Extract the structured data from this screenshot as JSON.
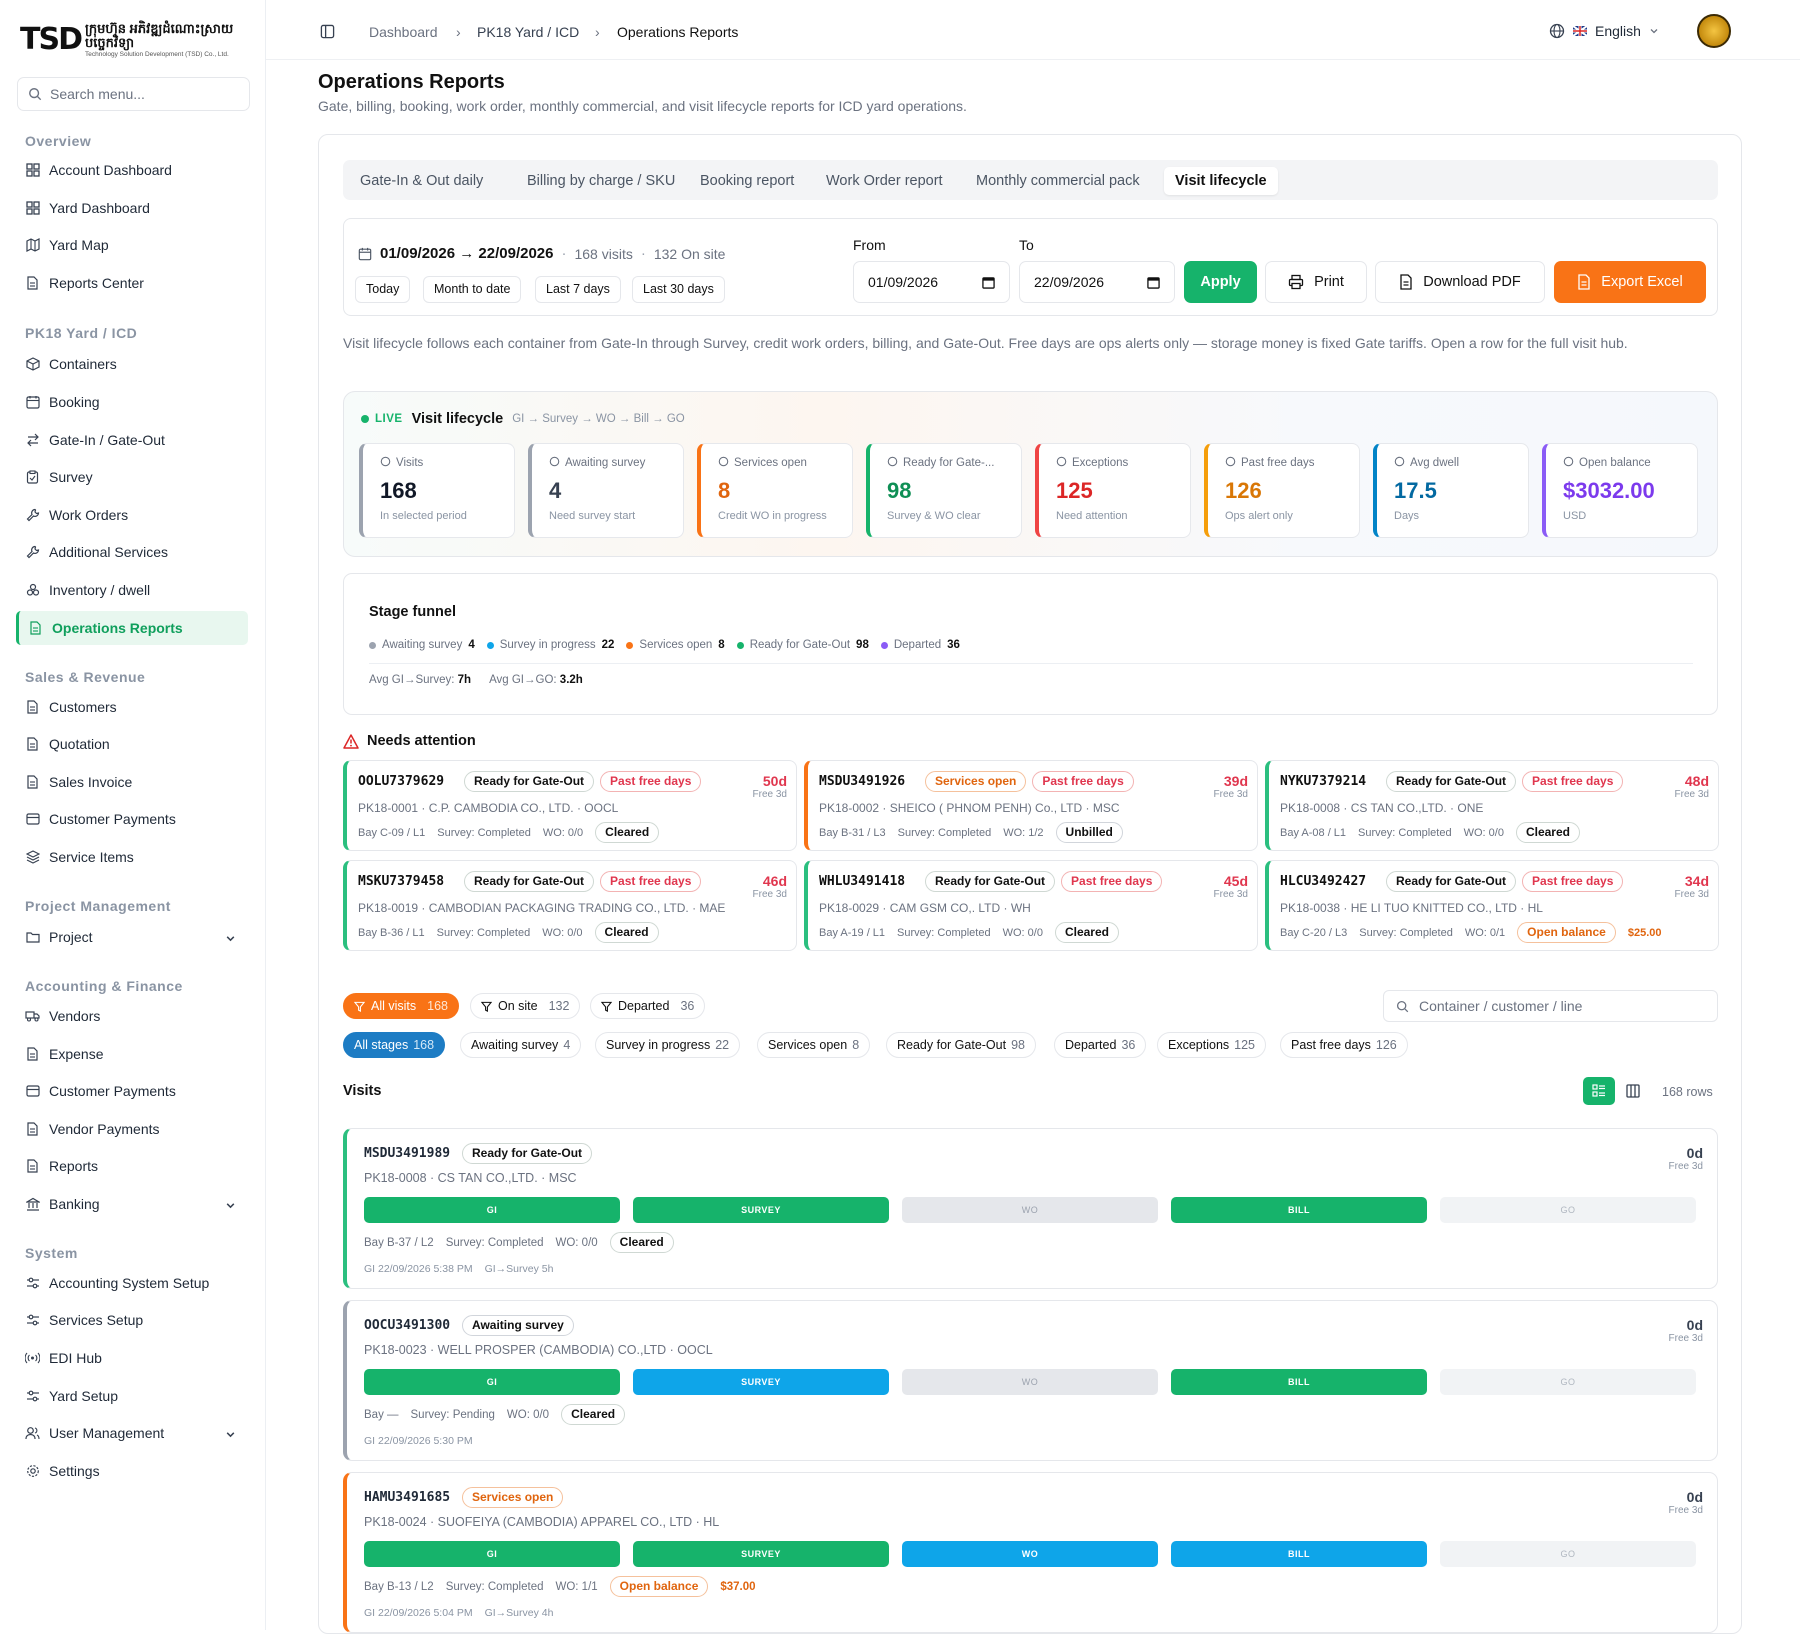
{
  "brand": {
    "mark": "TSD",
    "name_km": "ក្រុមហ៊ុន អភិវឌ្ឍដំណោះស្រាយបច្ចេកវិទ្យា",
    "name_en": "Technology Solution Development (TSD) Co., Ltd."
  },
  "search": {
    "placeholder": "Search menu..."
  },
  "sidebar": {
    "sections": [
      "Overview",
      "PK18 Yard / ICD",
      "Sales & Revenue",
      "Project Management",
      "Accounting & Finance",
      "System"
    ],
    "overview": [
      "Account Dashboard",
      "Yard Dashboard",
      "Yard Map",
      "Reports Center"
    ],
    "yard": [
      "Containers",
      "Booking",
      "Gate-In / Gate-Out",
      "Survey",
      "Work Orders",
      "Additional Services",
      "Inventory / dwell",
      "Operations Reports"
    ],
    "sales": [
      "Customers",
      "Quotation",
      "Sales Invoice",
      "Customer Payments",
      "Service Items"
    ],
    "project": [
      "Project"
    ],
    "accounting": [
      "Vendors",
      "Expense",
      "Customer Payments",
      "Vendor Payments",
      "Reports",
      "Banking"
    ],
    "system": [
      "Accounting System Setup",
      "Services Setup",
      "EDI Hub",
      "Yard Setup",
      "User Management",
      "Settings"
    ]
  },
  "breadcrumb": [
    "Dashboard",
    "PK18 Yard / ICD",
    "Operations Reports"
  ],
  "language": "English",
  "page": {
    "title": "Operations Reports",
    "subtitle": "Gate, billing, booking, work order, monthly commercial, and visit lifecycle reports for ICD yard operations."
  },
  "tabs": [
    "Gate-In & Out daily",
    "Billing by charge / SKU",
    "Booking report",
    "Work Order report",
    "Monthly commercial pack",
    "Visit lifecycle"
  ],
  "filter": {
    "range": "01/09/2026 → 22/09/2026",
    "visits": "168 visits",
    "onsite": "132 On site",
    "quick": [
      "Today",
      "Month to date",
      "Last 7 days",
      "Last 30 days"
    ],
    "from_label": "From",
    "to_label": "To",
    "from": "01/09/2026",
    "to": "22/09/2026",
    "apply": "Apply",
    "print": "Print",
    "pdf": "Download PDF",
    "excel": "Export Excel"
  },
  "description": "Visit lifecycle follows each container from Gate-In through Survey, credit work orders, billing, and Gate-Out. Free days are ops alerts only — storage money is fixed Gate tariffs. Open a row for the full visit hub.",
  "lifecycle": {
    "live": "LIVE",
    "title": "Visit lifecycle",
    "flow": "GI → Survey → WO → Bill → GO",
    "kpis": [
      {
        "label": "Visits",
        "value": "168",
        "sub": "In selected period",
        "color": "#9ca3af",
        "vcolor": "#111827"
      },
      {
        "label": "Awaiting survey",
        "value": "4",
        "sub": "Need survey start",
        "color": "#9ca3af",
        "vcolor": "#374151"
      },
      {
        "label": "Services open",
        "value": "8",
        "sub": "Credit WO in progress",
        "color": "#f97316",
        "vcolor": "#e0650f"
      },
      {
        "label": "Ready for Gate-...",
        "value": "98",
        "sub": "Survey & WO clear",
        "color": "#16b36b",
        "vcolor": "#0f8f55"
      },
      {
        "label": "Exceptions",
        "value": "125",
        "sub": "Need attention",
        "color": "#ef4444",
        "vcolor": "#dc2626"
      },
      {
        "label": "Past free days",
        "value": "126",
        "sub": "Ops alert only",
        "color": "#f59e0b",
        "vcolor": "#d97706"
      },
      {
        "label": "Avg dwell",
        "value": "17.5",
        "sub": "Days",
        "color": "#0284c7",
        "vcolor": "#0369a1"
      },
      {
        "label": "Open balance",
        "value": "$3032.00",
        "sub": "USD",
        "color": "#8b5cf6",
        "vcolor": "#7c3aed"
      }
    ]
  },
  "funnel": {
    "title": "Stage funnel",
    "items": [
      {
        "label": "Awaiting survey",
        "n": "4",
        "color": "#9ca3af"
      },
      {
        "label": "Survey in progress",
        "n": "22",
        "color": "#0ea5e9"
      },
      {
        "label": "Services open",
        "n": "8",
        "color": "#f97316"
      },
      {
        "label": "Ready for Gate-Out",
        "n": "98",
        "color": "#16b36b"
      },
      {
        "label": "Departed",
        "n": "36",
        "color": "#8b5cf6"
      }
    ],
    "avg1_label": "Avg GI→Survey:",
    "avg1": "7h",
    "avg2_label": "Avg GI→GO:",
    "avg2": "3.2h"
  },
  "attention": {
    "title": "Needs attention",
    "cards": [
      {
        "id": "OOLU7379629",
        "status": "Ready for Gate-Out",
        "scls": "green",
        "flag": "Past free days",
        "days": "50d",
        "free": "Free 3d",
        "line1": "PK18-0001 · C.P. CAMBODIA CO., LTD. · OOCL",
        "bay": "Bay C-09 / L1",
        "survey": "Survey: Completed",
        "wo": "WO: 0/0",
        "bill": "Cleared",
        "bcls": "green",
        "amt": ""
      },
      {
        "id": "MSDU3491926",
        "status": "Services open",
        "scls": "orange",
        "flag": "Past free days",
        "days": "39d",
        "free": "Free 3d",
        "line1": "PK18-0002 · SHEICO ( PHNOM PENH) Co., LTD · MSC",
        "bay": "Bay B-31 / L3",
        "survey": "Survey: Completed",
        "wo": "WO: 1/2",
        "bill": "Unbilled",
        "bcls": "",
        "amt": ""
      },
      {
        "id": "NYKU7379214",
        "status": "Ready for Gate-Out",
        "scls": "green",
        "flag": "Past free days",
        "days": "48d",
        "free": "Free 3d",
        "line1": "PK18-0008 · CS TAN CO.,LTD. · ONE",
        "bay": "Bay A-08 / L1",
        "survey": "Survey: Completed",
        "wo": "WO: 0/0",
        "bill": "Cleared",
        "bcls": "green",
        "amt": ""
      },
      {
        "id": "MSKU7379458",
        "status": "Ready for Gate-Out",
        "scls": "green",
        "flag": "Past free days",
        "days": "46d",
        "free": "Free 3d",
        "line1": "PK18-0019 · CAMBODIAN PACKAGING TRADING CO., LTD. · MAE",
        "bay": "Bay B-36 / L1",
        "survey": "Survey: Completed",
        "wo": "WO: 0/0",
        "bill": "Cleared",
        "bcls": "green",
        "amt": ""
      },
      {
        "id": "WHLU3491418",
        "status": "Ready for Gate-Out",
        "scls": "green",
        "flag": "Past free days",
        "days": "45d",
        "free": "Free 3d",
        "line1": "PK18-0029 · CAM GSM CO,. LTD · WH",
        "bay": "Bay A-19 / L1",
        "survey": "Survey: Completed",
        "wo": "WO: 0/0",
        "bill": "Cleared",
        "bcls": "green",
        "amt": ""
      },
      {
        "id": "HLCU3492427",
        "status": "Ready for Gate-Out",
        "scls": "green",
        "flag": "Past free days",
        "days": "34d",
        "free": "Free 3d",
        "line1": "PK18-0038 · HE LI TUO KNITTED CO., LTD · HL",
        "bay": "Bay C-20 / L3",
        "survey": "Survey: Completed",
        "wo": "WO: 0/1",
        "bill": "Open balance",
        "bcls": "orange",
        "amt": "$25.00"
      }
    ]
  },
  "visit_filters": [
    {
      "label": "All visits",
      "n": "168"
    },
    {
      "label": "On site",
      "n": "132"
    },
    {
      "label": "Departed",
      "n": "36"
    }
  ],
  "stage_filters": [
    {
      "label": "All stages",
      "n": "168"
    },
    {
      "label": "Awaiting survey",
      "n": "4"
    },
    {
      "label": "Survey in progress",
      "n": "22"
    },
    {
      "label": "Services open",
      "n": "8"
    },
    {
      "label": "Ready for Gate-Out",
      "n": "98"
    },
    {
      "label": "Departed",
      "n": "36"
    },
    {
      "label": "Exceptions",
      "n": "125"
    },
    {
      "label": "Past free days",
      "n": "126"
    }
  ],
  "list_search_placeholder": "Container / customer / line",
  "visits_title": "Visits",
  "rows_count": "168 rows",
  "visits": [
    {
      "id": "MSDU3491989",
      "status": "Ready for Gate-Out",
      "scls": "green",
      "cust": "PK18-0008 · CS TAN CO.,LTD. · MSC",
      "days": "0d",
      "free": "Free 3d",
      "stages": [
        "g",
        "g",
        "x",
        "g",
        "x2"
      ],
      "bay": "Bay B-37 / L2",
      "survey": "Survey: Completed",
      "wo": "WO: 0/0",
      "bill": "Cleared",
      "bcls": "green",
      "amt": "",
      "ts": "GI 22/09/2026 5:38 PM",
      "tdelta": "GI→Survey 5h",
      "border": "#2bbf7f"
    },
    {
      "id": "OOCU3491300",
      "status": "Awaiting survey",
      "scls": "",
      "cust": "PK18-0023 · WELL PROSPER  (CAMBODIA) CO.,LTD · OOCL",
      "days": "0d",
      "free": "Free 3d",
      "stages": [
        "g",
        "b",
        "x",
        "g",
        "x2"
      ],
      "bay": "Bay —",
      "survey": "Survey: Pending",
      "wo": "WO: 0/0",
      "bill": "Cleared",
      "bcls": "green",
      "amt": "",
      "ts": "GI 22/09/2026 5:30 PM",
      "tdelta": "",
      "border": "#9ca3af"
    },
    {
      "id": "HAMU3491685",
      "status": "Services open",
      "scls": "orange",
      "cust": "PK18-0024 · SUOFEIYA (CAMBODIA) APPAREL CO., LTD · HL",
      "days": "0d",
      "free": "Free 3d",
      "stages": [
        "g",
        "g",
        "b",
        "b",
        "x2"
      ],
      "bay": "Bay B-13 / L2",
      "survey": "Survey: Completed",
      "wo": "WO: 1/1",
      "bill": "Open balance",
      "bcls": "orange",
      "amt": "$37.00",
      "ts": "GI 22/09/2026 5:04 PM",
      "tdelta": "GI→Survey 4h",
      "border": "#f97316"
    }
  ],
  "stage_labels": [
    "GI",
    "SURVEY",
    "WO",
    "BILL",
    "GO"
  ]
}
